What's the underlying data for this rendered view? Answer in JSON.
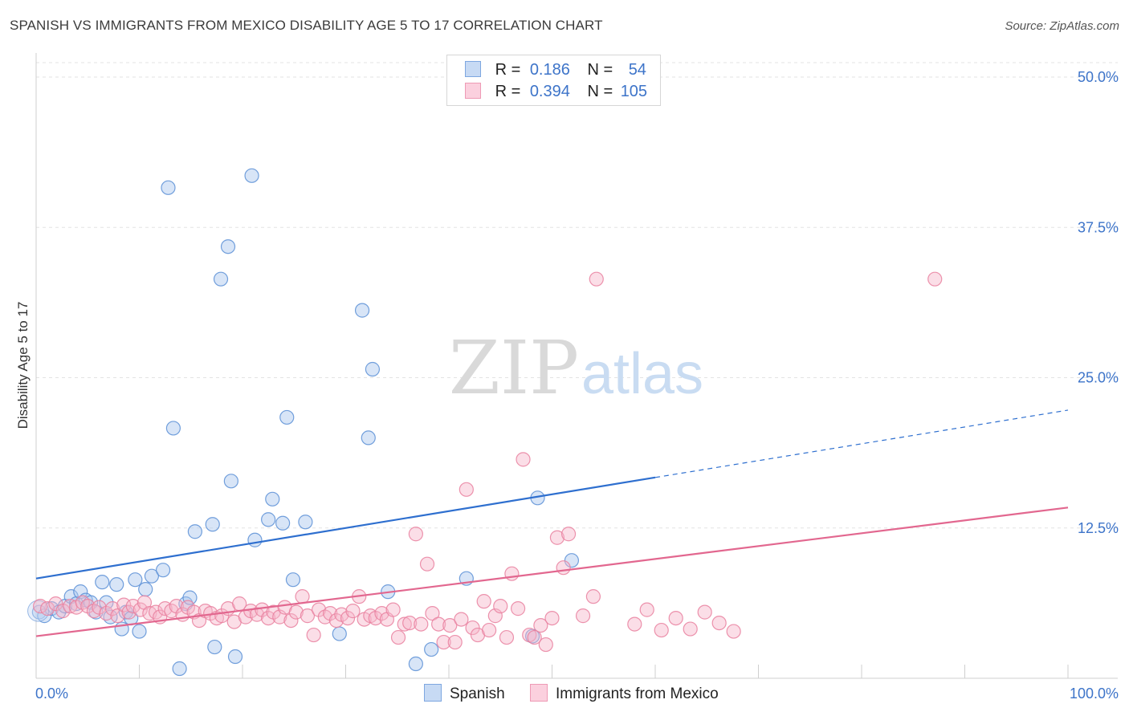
{
  "header": {
    "title": "SPANISH VS IMMIGRANTS FROM MEXICO DISABILITY AGE 5 TO 17 CORRELATION CHART",
    "source": "Source: ZipAtlas.com"
  },
  "watermark": {
    "part1": "ZIP",
    "part2": "atlas"
  },
  "legend": {
    "rows": [
      {
        "r_label": "R =",
        "r_value": "0.186",
        "n_label": "N =",
        "n_value": "54",
        "color": "#a9c6ee"
      },
      {
        "r_label": "R =",
        "r_value": "0.394",
        "n_label": "N =",
        "n_value": "105",
        "color": "#f6b5c9"
      }
    ]
  },
  "bottom_legend": [
    {
      "label": "Spanish",
      "color": "#a9c6ee"
    },
    {
      "label": "Immigrants from Mexico",
      "color": "#f6b5c9"
    }
  ],
  "chart_data": {
    "type": "scatter",
    "title": "SPANISH VS IMMIGRANTS FROM MEXICO DISABILITY AGE 5 TO 17 CORRELATION CHART",
    "ylabel": "Disability Age 5 to 17",
    "xlim": [
      0,
      100
    ],
    "ylim": [
      0,
      50
    ],
    "x_tick_labels": [
      "0.0%",
      "100.0%"
    ],
    "y_ticks": [
      12.5,
      25.0,
      37.5,
      50.0
    ],
    "y_tick_labels": [
      "12.5%",
      "25.0%",
      "37.5%",
      "50.0%"
    ],
    "grid": true,
    "legend_position": "top-center",
    "series": [
      {
        "name": "Spanish",
        "color": "#5b8fd6",
        "fill": "#a9c6ee",
        "trend": {
          "x0": 0,
          "y0": 8.3,
          "x1": 60,
          "y1": 16.7,
          "dash_to_x": 100,
          "dash_to_y": 22.3,
          "color": "#2e6fcf"
        },
        "points": [
          [
            0.3,
            5.5
          ],
          [
            0.8,
            5.2
          ],
          [
            1.5,
            5.8
          ],
          [
            2.2,
            5.5
          ],
          [
            2.8,
            6.0
          ],
          [
            3.4,
            6.8
          ],
          [
            3.9,
            6.2
          ],
          [
            4.3,
            7.2
          ],
          [
            4.8,
            6.5
          ],
          [
            5.3,
            6.3
          ],
          [
            5.8,
            5.5
          ],
          [
            6.4,
            8.0
          ],
          [
            6.8,
            6.3
          ],
          [
            7.2,
            5.1
          ],
          [
            7.8,
            7.8
          ],
          [
            8.3,
            4.1
          ],
          [
            8.7,
            5.5
          ],
          [
            9.2,
            5.0
          ],
          [
            9.6,
            8.2
          ],
          [
            10.0,
            3.9
          ],
          [
            10.6,
            7.4
          ],
          [
            11.2,
            8.5
          ],
          [
            12.3,
            9.0
          ],
          [
            12.8,
            40.8
          ],
          [
            13.3,
            20.8
          ],
          [
            13.9,
            0.8
          ],
          [
            14.5,
            6.2
          ],
          [
            14.9,
            6.7
          ],
          [
            15.4,
            12.2
          ],
          [
            17.1,
            12.8
          ],
          [
            17.3,
            2.6
          ],
          [
            17.9,
            33.2
          ],
          [
            18.6,
            35.9
          ],
          [
            18.9,
            16.4
          ],
          [
            19.3,
            1.8
          ],
          [
            20.9,
            41.8
          ],
          [
            21.2,
            11.5
          ],
          [
            22.5,
            13.2
          ],
          [
            22.9,
            14.9
          ],
          [
            23.9,
            12.9
          ],
          [
            24.3,
            21.7
          ],
          [
            24.9,
            8.2
          ],
          [
            26.1,
            13.0
          ],
          [
            29.4,
            3.7
          ],
          [
            31.6,
            30.6
          ],
          [
            32.2,
            20.0
          ],
          [
            32.6,
            25.7
          ],
          [
            34.1,
            7.2
          ],
          [
            36.8,
            1.2
          ],
          [
            38.3,
            2.4
          ],
          [
            41.7,
            8.3
          ],
          [
            48.1,
            3.5
          ],
          [
            48.6,
            15.0
          ],
          [
            51.9,
            9.8
          ]
        ]
      },
      {
        "name": "Immigrants from Mexico",
        "color": "#e9809f",
        "fill": "#f6b5c9",
        "trend": {
          "x0": 0,
          "y0": 3.5,
          "x1": 100,
          "y1": 14.2,
          "color": "#e2678f"
        },
        "points": [
          [
            0.4,
            6.0
          ],
          [
            1.1,
            5.8
          ],
          [
            1.9,
            6.2
          ],
          [
            2.6,
            5.6
          ],
          [
            3.3,
            6.0
          ],
          [
            3.9,
            5.9
          ],
          [
            4.5,
            6.3
          ],
          [
            5.0,
            6.0
          ],
          [
            5.6,
            5.6
          ],
          [
            6.1,
            5.9
          ],
          [
            6.8,
            5.4
          ],
          [
            7.4,
            5.8
          ],
          [
            7.9,
            5.2
          ],
          [
            8.5,
            6.1
          ],
          [
            9.0,
            5.5
          ],
          [
            9.4,
            6.0
          ],
          [
            10.1,
            5.7
          ],
          [
            10.5,
            6.3
          ],
          [
            11.0,
            5.4
          ],
          [
            11.6,
            5.5
          ],
          [
            12.0,
            5.1
          ],
          [
            12.5,
            5.8
          ],
          [
            13.1,
            5.6
          ],
          [
            13.6,
            6.0
          ],
          [
            14.2,
            5.3
          ],
          [
            14.7,
            5.9
          ],
          [
            15.3,
            5.5
          ],
          [
            15.8,
            4.8
          ],
          [
            16.4,
            5.6
          ],
          [
            16.9,
            5.4
          ],
          [
            17.5,
            5.0
          ],
          [
            18.0,
            5.2
          ],
          [
            18.6,
            5.8
          ],
          [
            19.2,
            4.7
          ],
          [
            19.7,
            6.2
          ],
          [
            20.3,
            5.1
          ],
          [
            20.8,
            5.6
          ],
          [
            21.4,
            5.3
          ],
          [
            21.9,
            5.7
          ],
          [
            22.5,
            5.0
          ],
          [
            23.0,
            5.5
          ],
          [
            23.6,
            5.1
          ],
          [
            24.1,
            5.9
          ],
          [
            24.7,
            4.8
          ],
          [
            25.2,
            5.5
          ],
          [
            25.8,
            6.8
          ],
          [
            26.3,
            5.2
          ],
          [
            26.9,
            3.6
          ],
          [
            27.4,
            5.7
          ],
          [
            28.0,
            5.1
          ],
          [
            28.5,
            5.4
          ],
          [
            29.1,
            4.8
          ],
          [
            29.6,
            5.3
          ],
          [
            30.2,
            5.0
          ],
          [
            30.7,
            5.6
          ],
          [
            31.3,
            6.8
          ],
          [
            31.8,
            4.9
          ],
          [
            32.4,
            5.2
          ],
          [
            32.9,
            5.0
          ],
          [
            33.5,
            5.4
          ],
          [
            34.0,
            4.9
          ],
          [
            34.6,
            5.7
          ],
          [
            35.1,
            3.4
          ],
          [
            35.7,
            4.5
          ],
          [
            36.2,
            4.6
          ],
          [
            36.8,
            12.0
          ],
          [
            37.3,
            4.5
          ],
          [
            37.9,
            9.5
          ],
          [
            38.4,
            5.4
          ],
          [
            39.0,
            4.5
          ],
          [
            39.5,
            3.0
          ],
          [
            40.1,
            4.4
          ],
          [
            40.6,
            3.0
          ],
          [
            41.2,
            4.9
          ],
          [
            41.7,
            15.7
          ],
          [
            42.3,
            4.2
          ],
          [
            42.8,
            3.6
          ],
          [
            43.4,
            6.4
          ],
          [
            43.9,
            4.0
          ],
          [
            44.5,
            5.2
          ],
          [
            45.0,
            6.0
          ],
          [
            45.6,
            3.4
          ],
          [
            46.1,
            8.7
          ],
          [
            46.7,
            5.8
          ],
          [
            47.2,
            18.2
          ],
          [
            47.8,
            3.6
          ],
          [
            48.3,
            3.4
          ],
          [
            48.9,
            4.4
          ],
          [
            49.4,
            2.8
          ],
          [
            50.0,
            5.0
          ],
          [
            50.5,
            11.7
          ],
          [
            51.1,
            9.2
          ],
          [
            51.6,
            12.0
          ],
          [
            53.0,
            5.2
          ],
          [
            54.0,
            6.8
          ],
          [
            54.3,
            33.2
          ],
          [
            58.0,
            4.5
          ],
          [
            59.2,
            5.7
          ],
          [
            60.6,
            4.0
          ],
          [
            62.0,
            5.0
          ],
          [
            63.4,
            4.1
          ],
          [
            64.8,
            5.5
          ],
          [
            66.2,
            4.6
          ],
          [
            67.6,
            3.9
          ],
          [
            87.1,
            33.2
          ]
        ]
      }
    ]
  }
}
